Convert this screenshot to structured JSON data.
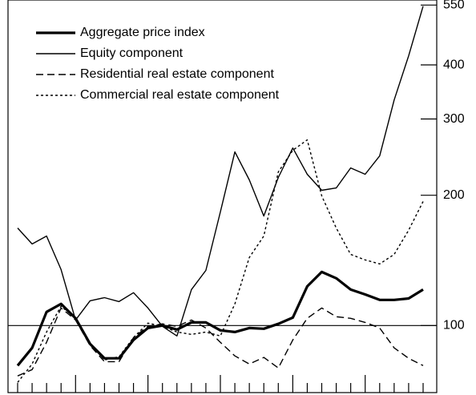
{
  "chart_data": {
    "type": "line",
    "yscale": "log",
    "categories": [
      null,
      null,
      null,
      null,
      null,
      null,
      null,
      null,
      null,
      null,
      null,
      null,
      null,
      null,
      null,
      null,
      null,
      null,
      null,
      null,
      null,
      null,
      null,
      null,
      null,
      null,
      null,
      null,
      null
    ],
    "series": [
      {
        "name": "Aggregate price index",
        "color": "#000000",
        "width": 3.2,
        "dash": "solid",
        "values": [
          80.8,
          88.8,
          107.5,
          112.2,
          103.9,
          90.7,
          84.0,
          84.0,
          92.6,
          98.7,
          100,
          97.9,
          101.7,
          101.7,
          97.5,
          96.6,
          98.7,
          98.3,
          100.9,
          104.3,
          123.2,
          133,
          128.6,
          121.1,
          118,
          114.6,
          114.6,
          115.5,
          121.1
        ]
      },
      {
        "name": "Equity component",
        "color": "#000000",
        "width": 1.4,
        "dash": "solid",
        "values": [
          168,
          154.3,
          161,
          134.7,
          103,
          114.1,
          116,
          113.6,
          119.1,
          109.8,
          99.6,
          94.6,
          121.1,
          134.1,
          183,
          251.8,
          217,
          179.1,
          219.8,
          257.2,
          223.6,
          205.3,
          207.9,
          231.3,
          223.6,
          246.5,
          332.1,
          419.7,
          546.7
        ]
      },
      {
        "name": "Residential real estate component",
        "color": "#000000",
        "width": 1.4,
        "dash": "dashed",
        "values": [
          76.5,
          79.1,
          91.5,
          109.8,
          103,
          89.9,
          82.5,
          82.5,
          93.8,
          99.6,
          100.9,
          99.6,
          103,
          98.7,
          91.5,
          85.1,
          81.5,
          84.4,
          79.8,
          92.6,
          103.9,
          109.8,
          104.8,
          103.9,
          101.7,
          98.7,
          88.8,
          84,
          80.8
        ]
      },
      {
        "name": "Commercial real estate component",
        "color": "#000000",
        "width": 1.4,
        "dash": "dotted",
        "values": [
          73.9,
          81.5,
          96.6,
          110.8,
          103.9,
          90.7,
          83.3,
          84.7,
          93.8,
          101.3,
          99.6,
          96.6,
          95.4,
          96.6,
          94.6,
          112.2,
          143.6,
          161,
          226.4,
          254,
          268.5,
          199.3,
          168,
          146,
          141.8,
          138.8,
          146,
          166,
          193.4
        ]
      }
    ],
    "ylim": [
      70,
      565
    ],
    "yticks": [
      100,
      200,
      300,
      400,
      550
    ],
    "reference_line": 100,
    "legend": "upper left"
  }
}
